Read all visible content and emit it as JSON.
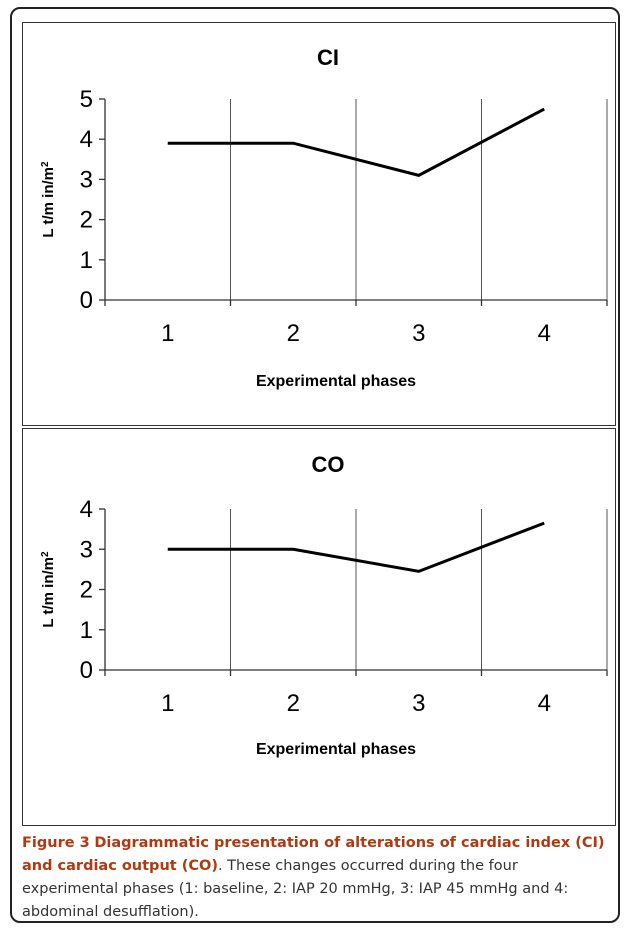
{
  "chart_data": [
    {
      "type": "line",
      "title": "CI",
      "xlabel": "Experimental phases",
      "ylabel": "L t/m in/m",
      "ylabel_sup": "2",
      "categories": [
        "1",
        "2",
        "3",
        "4"
      ],
      "yticks": [
        "0",
        "1",
        "2",
        "3",
        "4",
        "5"
      ],
      "ylim": [
        0,
        5
      ],
      "grid": "vertical",
      "series": [
        {
          "values": [
            3.9,
            3.9,
            3.1,
            4.75
          ]
        }
      ]
    },
    {
      "type": "line",
      "title": "CO",
      "xlabel": "Experimental phases",
      "ylabel": "L t/m in/m",
      "ylabel_sup": "2",
      "categories": [
        "1",
        "2",
        "3",
        "4"
      ],
      "yticks": [
        "0",
        "1",
        "2",
        "3",
        "4"
      ],
      "ylim": [
        0,
        4
      ],
      "grid": "vertical",
      "series": [
        {
          "values": [
            3.0,
            3.0,
            2.45,
            3.65
          ]
        }
      ]
    }
  ],
  "caption": {
    "figure_label": "Figure 3",
    "bold_text": "Diagrammatic presentation of alterations of cardiac index (CI) and cardiac output (CO)",
    "rest_text": ". These changes occurred during the four experimental phases (1: baseline, 2: IAP 20 mmHg, 3: IAP 45 mmHg and 4: abdominal desufflation)."
  }
}
